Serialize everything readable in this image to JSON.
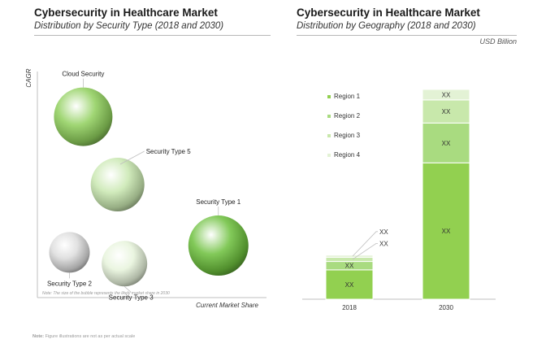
{
  "footnote": {
    "label": "Note:",
    "text": " Figure illustrations are not as per actual scale"
  },
  "chart_data": [
    {
      "type": "scatter",
      "variant": "bubble",
      "title": "Cybersecurity in Healthcare Market",
      "subtitle": "Distribution by Security Type (2018 and 2030)",
      "xlabel": "Current Market Share",
      "ylabel": "CAGR",
      "note": "Note: The size of the bubble represents the likely market share in 2030",
      "grid": false,
      "bubbles": [
        {
          "name": "Cloud Security",
          "x": 20,
          "y": 80,
          "size": 72,
          "color": "#8fcf5c"
        },
        {
          "name": "Security Type 5",
          "x": 35,
          "y": 50,
          "size": 66,
          "color": "#c9e8b0"
        },
        {
          "name": "Security Type 1",
          "x": 79,
          "y": 23,
          "size": 74,
          "color": "#6cbf3c"
        },
        {
          "name": "Security Type 2",
          "x": 14,
          "y": 20,
          "size": 50,
          "color": "#dcdcdc"
        },
        {
          "name": "Security Type 3",
          "x": 38,
          "y": 15,
          "size": 56,
          "color": "#e6f3da"
        }
      ]
    },
    {
      "type": "bar",
      "stacked": true,
      "title": "Cybersecurity in Healthcare Market",
      "subtitle": "Distribution by Geography  (2018 and 2030)",
      "unit": "USD Billion",
      "categories": [
        "2018",
        "2030"
      ],
      "ylim": [
        0,
        100
      ],
      "legend_position": "left",
      "series": [
        {
          "name": "Region 1",
          "color": "#92d050",
          "values": [
            14,
            65
          ],
          "labels": [
            "XX",
            "XX"
          ]
        },
        {
          "name": "Region 2",
          "color": "#a9db80",
          "values": [
            4,
            19
          ],
          "labels": [
            "XX",
            "XX"
          ]
        },
        {
          "name": "Region 3",
          "color": "#c8e8ab",
          "values": [
            2,
            11
          ],
          "labels": [
            "XX",
            "XX"
          ]
        },
        {
          "name": "Region 4",
          "color": "#e3f2d5",
          "values": [
            1,
            5
          ],
          "labels": [
            "XX",
            "XX"
          ]
        }
      ]
    }
  ]
}
